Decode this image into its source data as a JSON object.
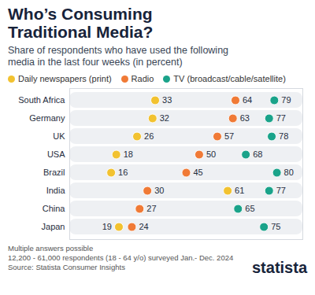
{
  "chart_data": {
    "type": "dot",
    "title": "Who’s Consuming Traditional Media?",
    "subtitle": "Share of respondents who have used the following media in the last four weeks (in percent)",
    "categories": [
      "South Africa",
      "Germany",
      "UK",
      "USA",
      "Brazil",
      "India",
      "China",
      "Japan"
    ],
    "series": [
      {
        "name": "Daily newspapers (print)",
        "color": "#f2c230",
        "values": [
          33,
          32,
          26,
          18,
          16,
          61,
          27,
          19
        ],
        "value_labels": [
          "33",
          "32",
          "26",
          "18",
          "16",
          "61",
          null,
          "19"
        ]
      },
      {
        "name": "Radio",
        "color": "#f07a36",
        "values": [
          64,
          63,
          57,
          50,
          45,
          30,
          27,
          24
        ]
      },
      {
        "name": "TV (broadcast/cable/satellite)",
        "color": "#1aa38a",
        "values": [
          79,
          77,
          78,
          68,
          80,
          77,
          65,
          75
        ]
      }
    ],
    "xlim": [
      0,
      90
    ],
    "xticks": [],
    "orientation": "horizontal",
    "data_labels": true,
    "tick_labels": "y",
    "legend": "top",
    "notes": [
      "Multiple answers possible",
      "12,200 - 61,000 respondents (18 - 64 y/o) surveyed Jan.- Dec. 2024"
    ],
    "source": "Source: Statista Consumer Insights",
    "brand": "statista"
  }
}
